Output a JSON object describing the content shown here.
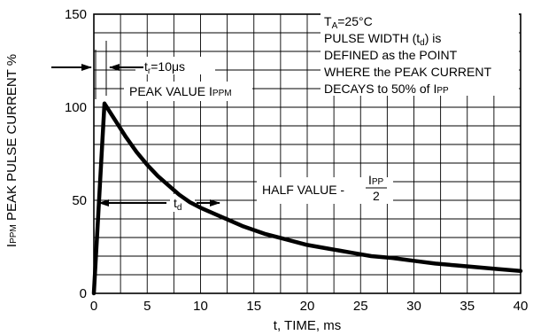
{
  "chart_data": {
    "type": "line",
    "title": "",
    "xlabel": "t, TIME, ms",
    "ylabel": "IPPM PEAK PULSE CURRENT %",
    "ylabel_parts": {
      "main": "I",
      "sub": "PPM",
      "rest": " PEAK PULSE CURRENT %"
    },
    "xlim": [
      0,
      40
    ],
    "ylim": [
      0,
      150
    ],
    "x_ticks": [
      0,
      5,
      10,
      15,
      20,
      25,
      30,
      35,
      40
    ],
    "y_ticks": [
      0,
      50,
      100,
      150
    ],
    "grid": true,
    "x_minor_step": 2.5,
    "y_minor_step": 10,
    "series": [
      {
        "x": [
          0,
          1,
          2,
          3,
          4,
          5,
          6,
          7,
          8,
          9,
          10,
          12,
          14,
          16,
          18,
          20,
          22,
          24,
          26,
          28,
          30,
          32,
          34,
          36,
          38,
          40
        ],
        "y": [
          0,
          102,
          93,
          84,
          76,
          69,
          63,
          58,
          53,
          49,
          46,
          41,
          36,
          32,
          29,
          26,
          24,
          22,
          20,
          19,
          17.5,
          16,
          15,
          14,
          13,
          12
        ]
      }
    ],
    "annotations": {
      "note_lines": [
        {
          "main": "T",
          "sub": "A",
          "rest": "=25°C"
        },
        {
          "main": "PULSE WIDTH (t",
          "sub": "d",
          "rest": ") is"
        },
        {
          "main": "DEFINED as the POINT",
          "sub": "",
          "rest": ""
        },
        {
          "main": "WHERE the PEAK CURRENT",
          "sub": "",
          "rest": ""
        },
        {
          "main": "DECAYS to 50% of I",
          "sub": "PP",
          "rest": ""
        }
      ],
      "tr": {
        "main": "t",
        "sub": "r",
        "rest": "=10μs"
      },
      "peak": {
        "main": "PEAK VALUE I",
        "sub": "PPM"
      },
      "td": {
        "main": "t",
        "sub": "d"
      },
      "half": {
        "main": "HALF VALUE - ",
        "frac_num": "I",
        "frac_num_sub": "PP",
        "frac_den": "2"
      }
    }
  }
}
